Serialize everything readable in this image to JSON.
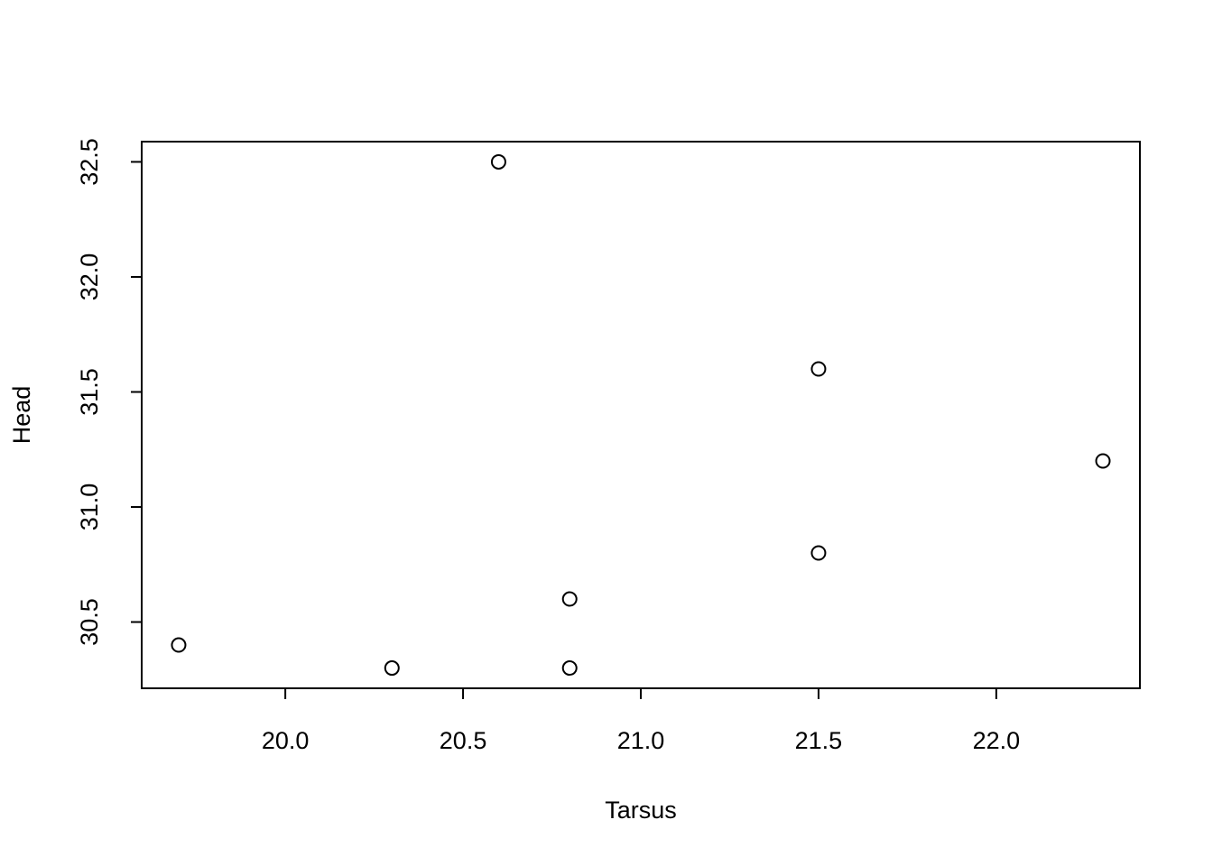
{
  "chart_data": {
    "type": "scatter",
    "xlabel": "Tarsus",
    "ylabel": "Head",
    "x": [
      19.7,
      20.3,
      20.6,
      20.8,
      20.8,
      21.5,
      21.5,
      22.3
    ],
    "values": [
      30.4,
      30.3,
      32.5,
      30.6,
      30.3,
      31.6,
      30.8,
      31.2
    ],
    "color": "#000000",
    "xlim": [
      19.596,
      22.404
    ],
    "ylim": [
      30.212,
      32.588
    ],
    "xticks": [
      {
        "value": 20,
        "label": "20.0"
      },
      20.5,
      {
        "value": 21,
        "label": "21.0"
      },
      21.5,
      {
        "value": 22,
        "label": "22.0"
      }
    ],
    "yticks": [
      30.5,
      {
        "value": 31,
        "label": "31.0"
      },
      31.5,
      {
        "value": 32,
        "label": "32.0"
      },
      32.5
    ],
    "grid": false
  }
}
